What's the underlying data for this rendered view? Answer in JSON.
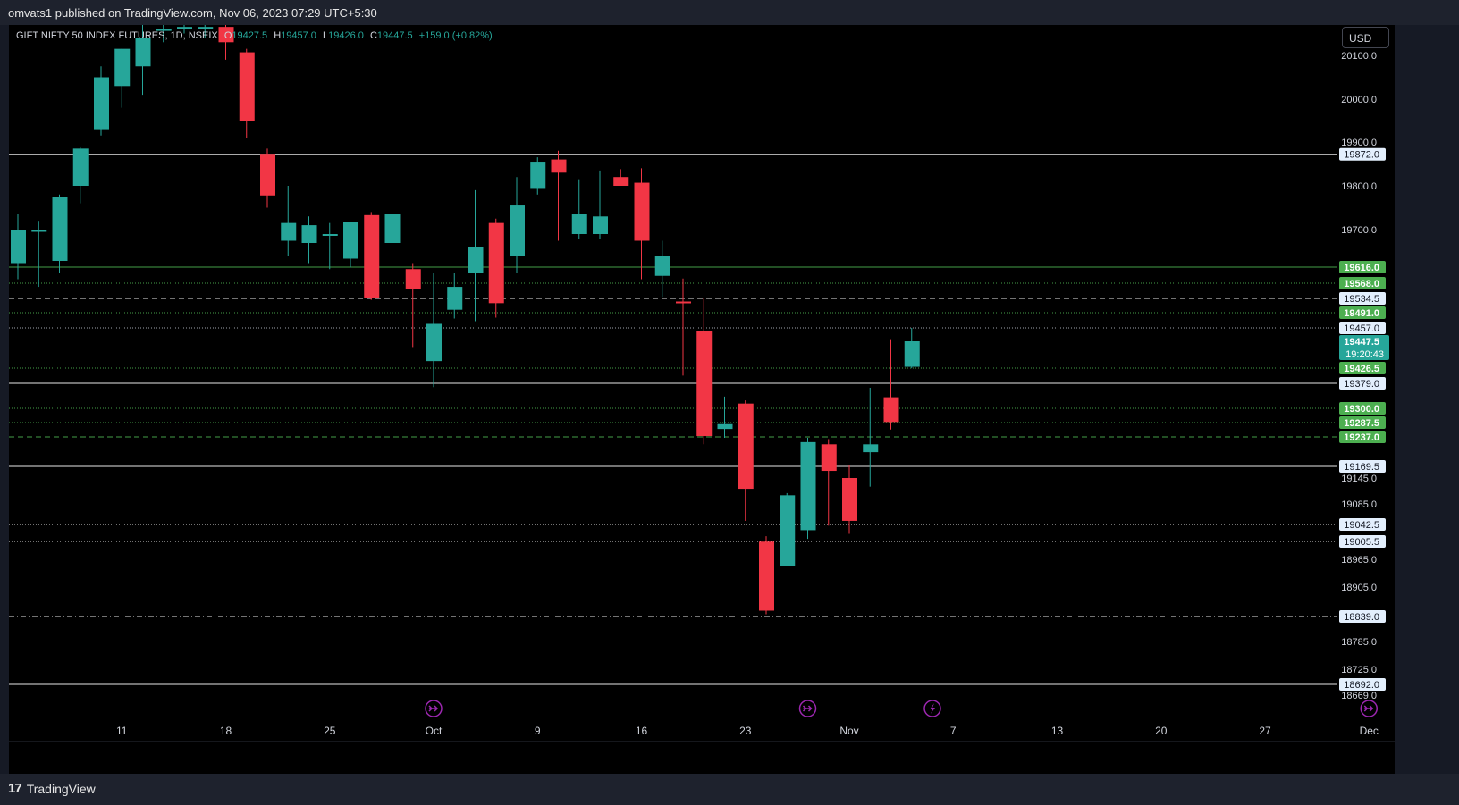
{
  "header": {
    "published_text": "omvats1 published on TradingView.com, Nov 06, 2023 07:29 UTC+5:30"
  },
  "footer": {
    "brand": "TradingView",
    "logo_glyph": "17"
  },
  "legend": {
    "symbol": "GIFT NIFTY 50 INDEX FUTURES, 1D, NSEIX",
    "open_label": "O",
    "open": "19427.5",
    "high_label": "H",
    "high": "19457.0",
    "low_label": "L",
    "low": "19426.0",
    "close_label": "C",
    "close": "19447.5",
    "change": "+159.0 (+0.82%)"
  },
  "currency": "USD",
  "colors": {
    "up": "#26a69a",
    "down": "#f23645",
    "background": "#000000",
    "panel": "#1e222d",
    "event_icon": "#9c27b0"
  },
  "chart_data": {
    "type": "candlestick",
    "title": "GIFT NIFTY 50 INDEX FUTURES, 1D, NSEIX",
    "ylim": [
      18669,
      20165
    ],
    "y_ticks": [
      20100,
      20000,
      19900,
      19800,
      19700,
      19145,
      19085,
      18965,
      18905,
      18785,
      18725,
      18669
    ],
    "y_tick_labels": [
      "20100.0",
      "20000.0",
      "19900.0",
      "19800.0",
      "19700.0",
      "19145.0",
      "19085.0",
      "18965.0",
      "18905.0",
      "18785.0",
      "18725.0",
      "18669.0"
    ],
    "x_ticks": [
      {
        "label": "11",
        "date": "2023-09-11"
      },
      {
        "label": "18",
        "date": "2023-09-18"
      },
      {
        "label": "25",
        "date": "2023-09-25"
      },
      {
        "label": "Oct",
        "date": "2023-10-02"
      },
      {
        "label": "9",
        "date": "2023-10-09"
      },
      {
        "label": "16",
        "date": "2023-10-16"
      },
      {
        "label": "23",
        "date": "2023-10-23"
      },
      {
        "label": "Nov",
        "date": "2023-10-30"
      },
      {
        "label": "7",
        "date": "2023-11-06"
      },
      {
        "label": "13",
        "date": "2023-11-13"
      },
      {
        "label": "20",
        "date": "2023-11-20"
      },
      {
        "label": "27",
        "date": "2023-11-27"
      },
      {
        "label": "Dec",
        "date": "2023-12-04"
      }
    ],
    "candles": [
      {
        "date": "2023-09-04",
        "o": 19625,
        "h": 19735,
        "l": 19580,
        "c": 19700
      },
      {
        "date": "2023-09-05",
        "o": 19695,
        "h": 19720,
        "l": 19560,
        "c": 19700
      },
      {
        "date": "2023-09-06",
        "o": 19630,
        "h": 19780,
        "l": 19600,
        "c": 19775
      },
      {
        "date": "2023-09-07",
        "o": 19800,
        "h": 19890,
        "l": 19760,
        "c": 19885
      },
      {
        "date": "2023-09-08",
        "o": 19930,
        "h": 20075,
        "l": 19915,
        "c": 20050
      },
      {
        "date": "2023-09-11",
        "o": 20030,
        "h": 20115,
        "l": 19980,
        "c": 20115
      },
      {
        "date": "2023-09-12",
        "o": 20075,
        "h": 20180,
        "l": 20010,
        "c": 20140
      },
      {
        "date": "2023-09-13",
        "o": 20160,
        "h": 20190,
        "l": 20130,
        "c": 20160
      },
      {
        "date": "2023-09-14",
        "o": 20160,
        "h": 20190,
        "l": 20150,
        "c": 20165
      },
      {
        "date": "2023-09-15",
        "o": 20160,
        "h": 20175,
        "l": 20140,
        "c": 20165
      },
      {
        "date": "2023-09-18",
        "o": 20165,
        "h": 20170,
        "l": 20090,
        "c": 20130
      },
      {
        "date": "2023-09-19",
        "o": 20107,
        "h": 20115,
        "l": 19910,
        "c": 19950
      },
      {
        "date": "2023-09-20",
        "o": 19873,
        "h": 19885,
        "l": 19750,
        "c": 19778
      },
      {
        "date": "2023-09-21",
        "o": 19675,
        "h": 19800,
        "l": 19640,
        "c": 19715
      },
      {
        "date": "2023-09-22",
        "o": 19670,
        "h": 19730,
        "l": 19625,
        "c": 19710
      },
      {
        "date": "2023-09-25",
        "o": 19690,
        "h": 19715,
        "l": 19610,
        "c": 19690
      },
      {
        "date": "2023-09-26",
        "o": 19635,
        "h": 19712,
        "l": 19615,
        "c": 19718
      },
      {
        "date": "2023-09-27",
        "o": 19733,
        "h": 19740,
        "l": 19530,
        "c": 19535
      },
      {
        "date": "2023-09-28",
        "o": 19670,
        "h": 19795,
        "l": 19650,
        "c": 19735
      },
      {
        "date": "2023-09-29",
        "o": 19610,
        "h": 19625,
        "l": 19443,
        "c": 19556
      },
      {
        "date": "2023-10-02",
        "o": 19432,
        "h": 19600,
        "l": 19367,
        "c": 19466
      },
      {
        "date": "2023-10-03",
        "o": 19500,
        "h": 19600,
        "l": 19478,
        "c": 19560
      },
      {
        "date": "2023-10-04",
        "o": 19600,
        "h": 19790,
        "l": 19472,
        "c": 19660
      },
      {
        "date": "2023-10-05",
        "o": 19715,
        "h": 19725,
        "l": 19480,
        "c": 19520
      },
      {
        "date": "2023-10-06",
        "o": 19640,
        "h": 19820,
        "l": 19600,
        "c": 19755
      },
      {
        "date": "2023-10-09",
        "o": 19795,
        "h": 19865,
        "l": 19780,
        "c": 19855
      },
      {
        "date": "2023-10-10",
        "o": 19860,
        "h": 19880,
        "l": 19675,
        "c": 19830
      },
      {
        "date": "2023-10-11",
        "o": 19690,
        "h": 19815,
        "l": 19678,
        "c": 19735
      },
      {
        "date": "2023-10-12",
        "o": 19690,
        "h": 19835,
        "l": 19680,
        "c": 19730
      },
      {
        "date": "2023-10-13",
        "o": 19820,
        "h": 19838,
        "l": 19800,
        "c": 19800
      },
      {
        "date": "2023-10-16",
        "o": 19807,
        "h": 19840,
        "l": 19580,
        "c": 19675
      },
      {
        "date": "2023-10-17",
        "o": 19590,
        "h": 19675,
        "l": 19538,
        "c": 19640
      },
      {
        "date": "2023-10-18",
        "o": 19525,
        "h": 19582,
        "l": 19403,
        "c": 19522
      },
      {
        "date": "2023-10-19",
        "o": 19455,
        "h": 19535,
        "l": 19220,
        "c": 19240
      },
      {
        "date": "2023-10-20",
        "o": 19265,
        "h": 19337,
        "l": 19235,
        "c": 19282
      },
      {
        "date": "2023-10-23",
        "o": 19315,
        "h": 19325,
        "l": 19050,
        "c": 19120
      },
      {
        "date": "2023-10-24",
        "o": 19005,
        "h": 19017,
        "l": 18844,
        "c": 18852
      },
      {
        "date": "2023-10-25",
        "o": 18950,
        "h": 19110,
        "l": 18950,
        "c": 19105
      },
      {
        "date": "2023-10-26",
        "o": 19030,
        "h": 19235,
        "l": 19011,
        "c": 19225
      },
      {
        "date": "2023-10-27",
        "o": 19220,
        "h": 19232,
        "l": 19040,
        "c": 19160
      },
      {
        "date": "2023-10-30",
        "o": 19145,
        "h": 19172,
        "l": 19022,
        "c": 19050
      },
      {
        "date": "2023-10-31",
        "o": 19202,
        "h": 19365,
        "l": 19125,
        "c": 19220
      },
      {
        "date": "2023-11-01",
        "o": 19335,
        "h": 19449,
        "l": 19263,
        "c": 19288
      },
      {
        "date": "2023-11-02",
        "o": 19427.5,
        "h": 19457,
        "l": 19426,
        "c": 19447.5
      }
    ],
    "horizontal_levels": [
      {
        "value": 19872.0,
        "label": "19872.0",
        "style": "solid",
        "color": "#ffffff",
        "tag": "#e3effd"
      },
      {
        "value": 19616.0,
        "label": "19616.0",
        "style": "solid",
        "color": "#4caf50",
        "tag": "#4caf50"
      },
      {
        "value": 19568.0,
        "label": "19568.0",
        "style": "dotted",
        "color": "#4caf50",
        "tag": "#4caf50"
      },
      {
        "value": 19534.5,
        "label": "19534.5",
        "style": "dashed",
        "color": "#ffffff",
        "tag": "#e3effd"
      },
      {
        "value": 19491.0,
        "label": "19491.0",
        "style": "dotted",
        "color": "#4caf50",
        "tag": "#4caf50"
      },
      {
        "value": 19457.0,
        "label": "19457.0",
        "style": "dotted",
        "color": "#b2b5be",
        "tag": "#e3effd"
      },
      {
        "value": 19426.5,
        "label": "19426.5",
        "style": "dotted",
        "color": "#4caf50",
        "tag": "#4caf50"
      },
      {
        "value": 19379.0,
        "label": "19379.0",
        "style": "solid",
        "color": "#ffffff",
        "tag": "#e3effd"
      },
      {
        "value": 19300.0,
        "label": "19300.0",
        "style": "dotted",
        "color": "#4caf50",
        "tag": "#4caf50"
      },
      {
        "value": 19287.5,
        "label": "19287.5",
        "style": "dotted",
        "color": "#4caf50",
        "tag": "#4caf50"
      },
      {
        "value": 19237.0,
        "label": "19237.0",
        "style": "dashed",
        "color": "#4caf50",
        "tag": "#4caf50"
      },
      {
        "value": 19169.5,
        "label": "19169.5",
        "style": "solid",
        "color": "#ffffff",
        "tag": "#e3effd"
      },
      {
        "value": 19042.5,
        "label": "19042.5",
        "style": "dotted",
        "color": "#ffffff",
        "tag": "#e3effd"
      },
      {
        "value": 19005.5,
        "label": "19005.5",
        "style": "dotted",
        "color": "#ffffff",
        "tag": "#e3effd"
      },
      {
        "value": 18839.0,
        "label": "18839.0",
        "style": "dashdot",
        "color": "#ffffff",
        "tag": "#e3effd"
      },
      {
        "value": 18692.0,
        "label": "18692.0",
        "style": "solid",
        "color": "#ffffff",
        "tag": "#e3effd"
      }
    ],
    "last_price": {
      "value": 19447.5,
      "label": "19447.5",
      "countdown": "19:20:43"
    },
    "event_markers": [
      {
        "date": "2023-10-02",
        "icon": "dividend-arrow-icon"
      },
      {
        "date": "2023-10-26",
        "icon": "dividend-arrow-icon"
      },
      {
        "date": "2023-11-03",
        "icon": "earnings-lightning-icon"
      },
      {
        "date": "2023-12-04",
        "icon": "dividend-arrow-icon"
      }
    ]
  }
}
